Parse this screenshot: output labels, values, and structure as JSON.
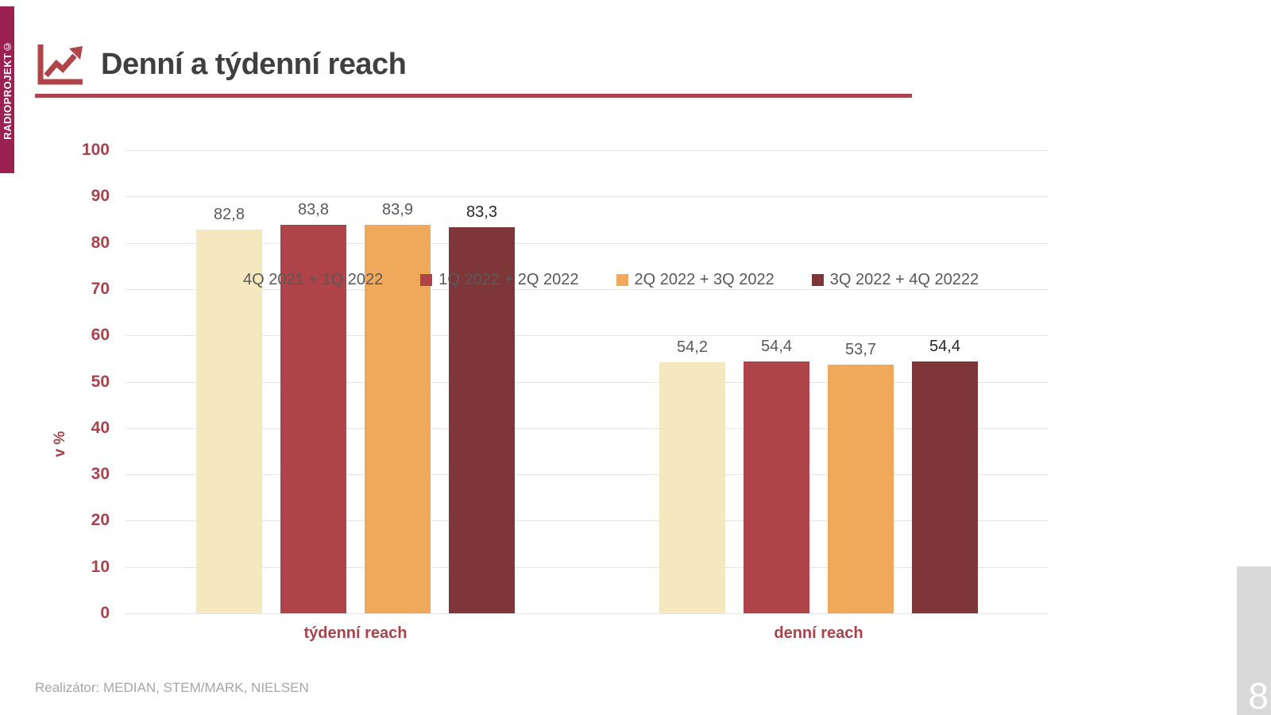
{
  "brand_strip": {
    "text": "RADIOPROJEKT©",
    "bg": "#9B2150"
  },
  "header": {
    "title": "Denní a týdenní reach",
    "accent": "#AC4350",
    "icon": "line-chart-icon"
  },
  "chart_data": {
    "type": "bar",
    "title": "",
    "ylabel": "v %",
    "xlabel": "",
    "ylim": [
      0,
      100
    ],
    "yticks": [
      0,
      10,
      20,
      30,
      40,
      50,
      60,
      70,
      80,
      90,
      100
    ],
    "ytick_labels": [
      "0",
      "10",
      "20",
      "30",
      "40",
      "50",
      "60",
      "70",
      "80",
      "90",
      "100"
    ],
    "grid": true,
    "legend_position": "top",
    "categories": [
      "týdenní reach",
      "denní reach"
    ],
    "series": [
      {
        "name": "4Q 2021 + 1Q 2022",
        "color": "#F5E7BE",
        "values": [
          82.8,
          54.2
        ],
        "value_labels": [
          "82,8",
          "54,2"
        ],
        "label_color": "#595959"
      },
      {
        "name": "1Q 2022 + 2Q 2022",
        "color": "#AE4449",
        "values": [
          83.8,
          54.4
        ],
        "value_labels": [
          "83,8",
          "54,4"
        ],
        "label_color": "#595959"
      },
      {
        "name": "2Q 2022 + 3Q 2022",
        "color": "#F0A85A",
        "values": [
          83.9,
          53.7
        ],
        "value_labels": [
          "83,9",
          "53,7"
        ],
        "label_color": "#595959"
      },
      {
        "name": "3Q 2022 + 4Q 20222",
        "color": "#7E3638",
        "values": [
          83.3,
          54.4
        ],
        "value_labels": [
          "83,3",
          "54,4"
        ],
        "label_color": "#262626"
      }
    ],
    "colors": {
      "axis_text": "#A8434B",
      "grid": "#E4E4E4",
      "value_label_default": "#595959",
      "legend_text": "#595959"
    }
  },
  "footer": {
    "source": "Realizátor: MEDIAN, STEM/MARK, NIELSEN",
    "page_number": "8"
  }
}
